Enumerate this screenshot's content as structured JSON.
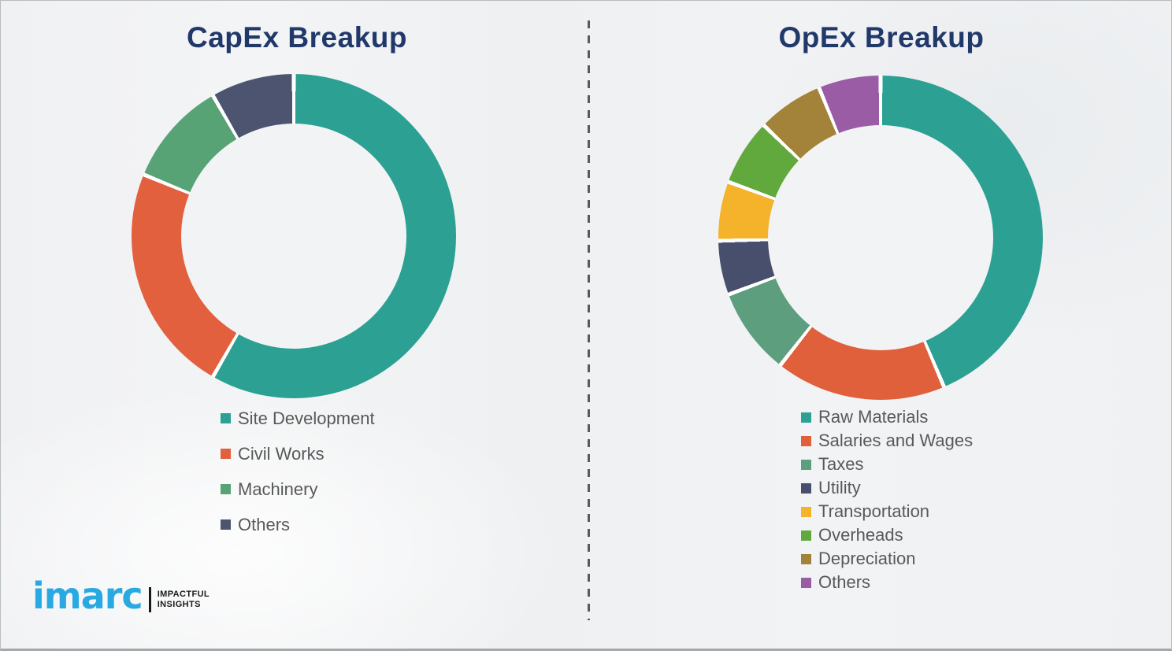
{
  "chart_data": [
    {
      "type": "donut",
      "title": "CapEx Breakup",
      "direction": "clockwise",
      "start_angle_deg": 0,
      "legend_position": "below",
      "segments": [
        {
          "label": "Site Development",
          "value_pct": 58.3,
          "color": "#2BA093"
        },
        {
          "label": "Civil Works",
          "value_pct": 22.9,
          "color": "#E2603D"
        },
        {
          "label": "Machinery",
          "value_pct": 10.5,
          "color": "#57A376"
        },
        {
          "label": "Others",
          "value_pct": 8.3,
          "color": "#4C5470"
        }
      ]
    },
    {
      "type": "donut",
      "title": "OpEx Breakup",
      "direction": "clockwise",
      "start_angle_deg": 0,
      "legend_position": "below",
      "segments": [
        {
          "label": "Raw Materials",
          "value_pct": 43.6,
          "color": "#2BA093"
        },
        {
          "label": "Salaries and Wages",
          "value_pct": 17.0,
          "color": "#E0603C"
        },
        {
          "label": "Taxes",
          "value_pct": 8.7,
          "color": "#5C9E7D"
        },
        {
          "label": "Utility",
          "value_pct": 5.4,
          "color": "#474F6D"
        },
        {
          "label": "Transportation",
          "value_pct": 5.9,
          "color": "#F5B32B"
        },
        {
          "label": "Overheads",
          "value_pct": 6.6,
          "color": "#61A83D"
        },
        {
          "label": "Depreciation",
          "value_pct": 6.6,
          "color": "#A28339"
        },
        {
          "label": "Others",
          "value_pct": 6.2,
          "color": "#9A5CA5"
        }
      ]
    }
  ],
  "logo": {
    "brand": "imarc",
    "tagline_line1": "IMPACTFUL",
    "tagline_line2": "INSIGHTS"
  },
  "colors": {
    "title_text": "#21386B",
    "legend_text": "#595959",
    "background": "#F0F1F3",
    "divider": "#595959",
    "logo_blue": "#29A9E1",
    "segment_gap": "#FFFFFF"
  }
}
